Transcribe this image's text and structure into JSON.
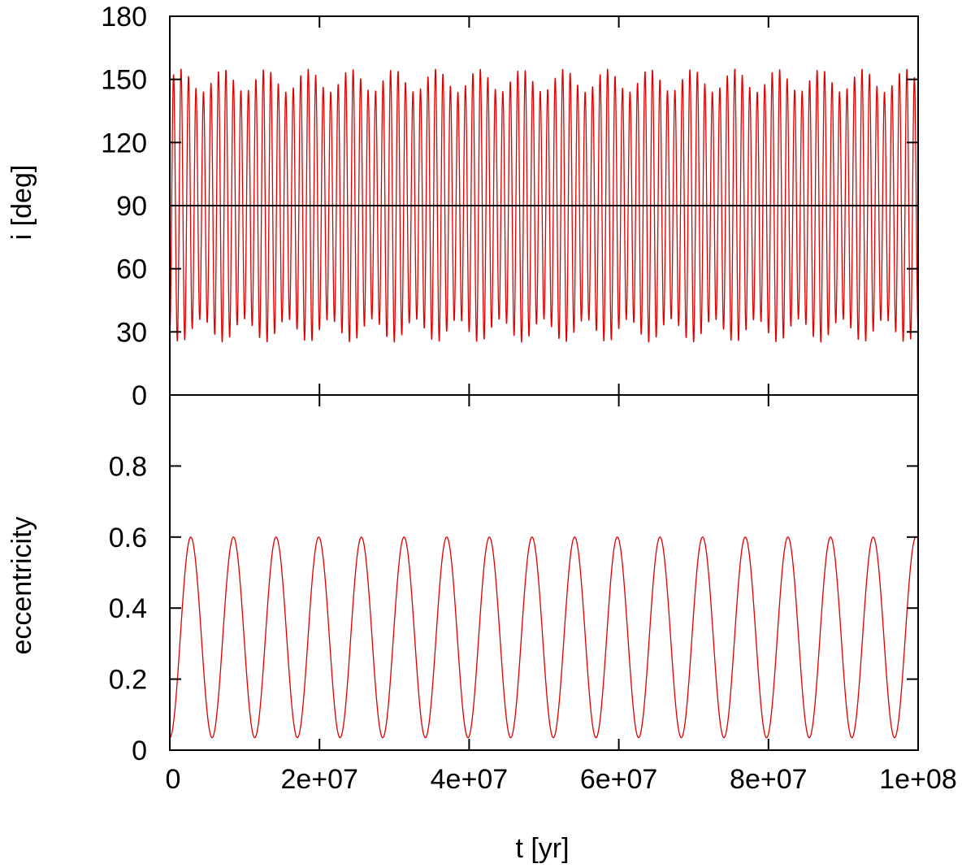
{
  "chart_data": [
    {
      "type": "line",
      "ylabel": "i  [deg]",
      "xlabel": "",
      "xlim": [
        0,
        100000000
      ],
      "ylim": [
        0,
        180
      ],
      "yticks": [
        0,
        30,
        60,
        90,
        120,
        150,
        180
      ],
      "ytick_labels": [
        "0",
        "30",
        "60",
        "90",
        "120",
        "150",
        "180"
      ],
      "xticks": [
        0,
        20000000,
        40000000,
        60000000,
        80000000,
        100000000
      ],
      "xtick_labels": [],
      "reference_line": {
        "y": 90,
        "color": "#000000"
      },
      "series": [
        {
          "color": "#e00000",
          "oscillation_period": 1000000,
          "envelope_period": 5700000,
          "max_range": [
            144,
            155
          ],
          "min_range": [
            25,
            36
          ]
        }
      ]
    },
    {
      "type": "line",
      "ylabel": "eccentricity",
      "xlabel": "t  [yr]",
      "xlim": [
        0,
        100000000
      ],
      "ylim": [
        0,
        1.0
      ],
      "yticks": [
        0,
        0.2,
        0.4,
        0.6,
        0.8
      ],
      "ytick_labels": [
        "0",
        "0.2",
        "0.4",
        "0.6",
        "0.8"
      ],
      "xticks": [
        0,
        20000000,
        40000000,
        60000000,
        80000000,
        100000000
      ],
      "xtick_labels": [
        "0",
        "2e+07",
        "4e+07",
        "6e+07",
        "8e+07",
        "1e+08"
      ],
      "series": [
        {
          "color": "#e00000",
          "peak_times": [
            2800000,
            8500000,
            14200000,
            19900000,
            25600000,
            31300000,
            37000000,
            42700000,
            48400000,
            54100000,
            59800000,
            65500000,
            71200000,
            76900000,
            82600000,
            88300000,
            94000000
          ],
          "trough_times": [
            0,
            5650000,
            11350000,
            17050000,
            22750000,
            28450000,
            34150000,
            39850000,
            45550000,
            51250000,
            56950000,
            62650000,
            68350000,
            74050000,
            79750000,
            85450000,
            91150000,
            96850000
          ],
          "peak_value": 0.6,
          "trough_value": 0.035
        }
      ]
    }
  ]
}
